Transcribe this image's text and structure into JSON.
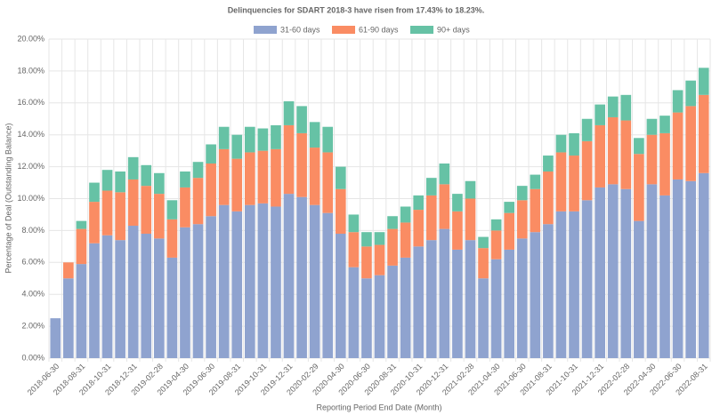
{
  "chart_data": {
    "type": "stacked_bar",
    "title": "Delinquencies for SDART 2018-3 have risen from 17.43% to 18.23%.",
    "x_label": "Reporting Period End Date (Month)",
    "y_label": "Percentage of Deal (Outstanding Balance)",
    "categories": [
      "2018-06-30",
      null,
      "2018-08-31",
      null,
      "2018-10-31",
      null,
      "2018-12-31",
      null,
      "2019-02-28",
      null,
      "2019-04-30",
      null,
      "2019-06-30",
      null,
      "2019-08-31",
      null,
      "2019-10-31",
      null,
      "2019-12-31",
      null,
      "2020-02-29",
      null,
      "2020-04-30",
      null,
      "2020-06-30",
      null,
      "2020-08-31",
      null,
      "2020-10-31",
      null,
      "2020-12-31",
      null,
      "2021-02-28",
      null,
      "2021-04-30",
      null,
      "2021-06-30",
      null,
      "2021-08-31",
      null,
      "2021-10-31",
      null,
      "2021-12-31",
      null,
      "2022-02-28",
      null,
      "2022-04-30",
      null,
      "2022-06-30",
      null,
      "2022-08-31"
    ],
    "series": [
      {
        "name": "31-60 days",
        "color": "#8fa3cf",
        "values": [
          2.5,
          5.0,
          5.9,
          7.2,
          7.7,
          7.4,
          8.3,
          7.8,
          7.5,
          6.3,
          8.2,
          8.4,
          8.9,
          9.6,
          9.2,
          9.6,
          9.7,
          9.5,
          10.3,
          10.1,
          9.6,
          9.1,
          7.8,
          5.7,
          5.0,
          5.2,
          5.8,
          6.3,
          7.0,
          7.4,
          8.1,
          6.8,
          7.4,
          5.0,
          6.2,
          6.8,
          7.5,
          7.9,
          8.4,
          9.2,
          9.2,
          9.9,
          10.7,
          10.9,
          10.6,
          8.6,
          10.9,
          10.2,
          11.2,
          11.1,
          11.6
        ]
      },
      {
        "name": "61-90 days",
        "color": "#fa8c63",
        "values": [
          0,
          1.0,
          2.2,
          2.6,
          2.8,
          3.0,
          2.9,
          3.0,
          2.8,
          2.4,
          2.5,
          2.9,
          3.3,
          3.5,
          3.3,
          3.3,
          3.3,
          3.6,
          4.3,
          4.0,
          3.6,
          3.8,
          2.8,
          2.2,
          2.0,
          1.9,
          2.3,
          2.2,
          2.3,
          2.8,
          2.8,
          2.4,
          2.6,
          1.9,
          1.8,
          2.3,
          2.4,
          2.7,
          3.3,
          3.7,
          3.5,
          3.7,
          3.9,
          4.2,
          4.3,
          4.2,
          3.1,
          3.9,
          4.2,
          4.7,
          4.9
        ]
      },
      {
        "name": "90+ days",
        "color": "#66c2a5",
        "values": [
          0,
          0,
          0.5,
          1.2,
          1.3,
          1.3,
          1.4,
          1.3,
          1.3,
          1.2,
          1.0,
          1.0,
          1.2,
          1.4,
          1.5,
          1.6,
          1.4,
          1.5,
          1.5,
          1.7,
          1.6,
          1.6,
          1.4,
          1.1,
          0.9,
          0.8,
          0.8,
          1.0,
          0.9,
          1.1,
          1.3,
          1.1,
          1.1,
          0.7,
          0.7,
          0.7,
          0.9,
          0.9,
          1.0,
          1.1,
          1.4,
          1.4,
          1.3,
          1.3,
          1.6,
          1.0,
          1.0,
          1.1,
          1.4,
          1.6,
          1.7
        ]
      }
    ],
    "ylim": [
      0,
      20
    ],
    "yticks": [
      {
        "value": 0,
        "label": "0.00%"
      },
      {
        "value": 2,
        "label": "2.00%"
      },
      {
        "value": 4,
        "label": "4.00%"
      },
      {
        "value": 6,
        "label": "6.00%"
      },
      {
        "value": 8,
        "label": "8.00%"
      },
      {
        "value": 10,
        "label": "10.00%"
      },
      {
        "value": 12,
        "label": "12.00%"
      },
      {
        "value": 14,
        "label": "14.00%"
      },
      {
        "value": 16,
        "label": "16.00%"
      },
      {
        "value": 18,
        "label": "18.00%"
      },
      {
        "value": 20,
        "label": "20.00%"
      }
    ],
    "grid": true,
    "legend": "top"
  }
}
